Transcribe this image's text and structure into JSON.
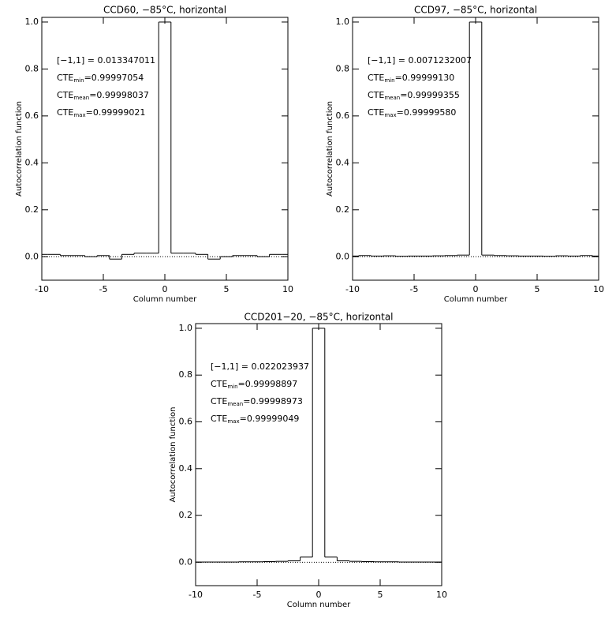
{
  "chart_data": [
    {
      "type": "step",
      "title": "CCD60, −85°C, horizontal",
      "xlabel": "Column number",
      "ylabel": "Autocorrelation function",
      "x": [
        -10,
        -9,
        -8,
        -7,
        -6,
        -5,
        -4,
        -3,
        -2,
        -1,
        0,
        1,
        2,
        3,
        4,
        5,
        6,
        7,
        8,
        9,
        10
      ],
      "values": [
        0.01,
        0.01,
        0.005,
        0.005,
        0.0,
        0.005,
        -0.01,
        0.01,
        0.015,
        0.015,
        1.0,
        0.015,
        0.015,
        0.01,
        -0.01,
        0.0,
        0.005,
        0.005,
        0.0,
        0.01,
        0.01
      ],
      "color": "#000000",
      "xlim": [
        -10,
        10
      ],
      "ylim": [
        -0.1,
        1.02
      ],
      "xticks": [
        -10,
        -5,
        0,
        5,
        10
      ],
      "yticks": [
        {
          "value": 0,
          "label": "0.0"
        },
        0.2,
        0.4,
        0.6,
        0.8,
        {
          "value": 1,
          "label": "1.0"
        }
      ],
      "reference_line": 0,
      "annotations": [
        {
          "text": "[−1,1] = 0.013347011"
        },
        {
          "text": "CTE",
          "sub": "min",
          "rest": "=0.99997054"
        },
        {
          "text": "CTE",
          "sub": "mean",
          "rest": "=0.99998037"
        },
        {
          "text": "CTE",
          "sub": "max",
          "rest": "=0.99999021"
        }
      ]
    },
    {
      "type": "step",
      "title": "CCD97, −85°C, horizontal",
      "xlabel": "Column number",
      "ylabel": "Autocorrelation function",
      "x": [
        -10,
        -9,
        -8,
        -7,
        -6,
        -5,
        -4,
        -3,
        -2,
        -1,
        0,
        1,
        2,
        3,
        4,
        5,
        6,
        7,
        8,
        9,
        10
      ],
      "values": [
        0.003,
        0.005,
        0.003,
        0.004,
        0.002,
        0.003,
        0.003,
        0.004,
        0.005,
        0.007,
        1.0,
        0.007,
        0.005,
        0.004,
        0.003,
        0.003,
        0.002,
        0.004,
        0.003,
        0.005,
        0.003
      ],
      "color": "#000000",
      "xlim": [
        -10,
        10
      ],
      "ylim": [
        -0.1,
        1.02
      ],
      "xticks": [
        -10,
        -5,
        0,
        5,
        10
      ],
      "yticks": [
        {
          "value": 0,
          "label": "0.0"
        },
        0.2,
        0.4,
        0.6,
        0.8,
        {
          "value": 1,
          "label": "1.0"
        }
      ],
      "reference_line": 0,
      "annotations": [
        {
          "text": "[−1,1] = 0.0071232007"
        },
        {
          "text": "CTE",
          "sub": "min",
          "rest": "=0.99999130"
        },
        {
          "text": "CTE",
          "sub": "mean",
          "rest": "=0.99999355"
        },
        {
          "text": "CTE",
          "sub": "max",
          "rest": "=0.99999580"
        }
      ]
    },
    {
      "type": "step",
      "title": "CCD201−20, −85°C, horizontal",
      "xlabel": "Column number",
      "ylabel": "Autocorrelation function",
      "x": [
        -10,
        -9,
        -8,
        -7,
        -6,
        -5,
        -4,
        -3,
        -2,
        -1,
        0,
        1,
        2,
        3,
        4,
        5,
        6,
        7,
        8,
        9,
        10
      ],
      "values": [
        0.001,
        0.001,
        0.001,
        0.001,
        0.002,
        0.002,
        0.003,
        0.004,
        0.006,
        0.022,
        1.0,
        0.022,
        0.006,
        0.004,
        0.003,
        0.002,
        0.002,
        0.001,
        0.001,
        0.001,
        0.001
      ],
      "color": "#000000",
      "xlim": [
        -10,
        10
      ],
      "ylim": [
        -0.1,
        1.02
      ],
      "xticks": [
        -10,
        -5,
        0,
        5,
        10
      ],
      "yticks": [
        {
          "value": 0,
          "label": "0.0"
        },
        0.2,
        0.4,
        0.6,
        0.8,
        {
          "value": 1,
          "label": "1.0"
        }
      ],
      "reference_line": 0,
      "annotations": [
        {
          "text": "[−1,1] = 0.022023937"
        },
        {
          "text": "CTE",
          "sub": "min",
          "rest": "=0.99998897"
        },
        {
          "text": "CTE",
          "sub": "mean",
          "rest": "=0.99998973"
        },
        {
          "text": "CTE",
          "sub": "max",
          "rest": "=0.99999049"
        }
      ]
    }
  ]
}
